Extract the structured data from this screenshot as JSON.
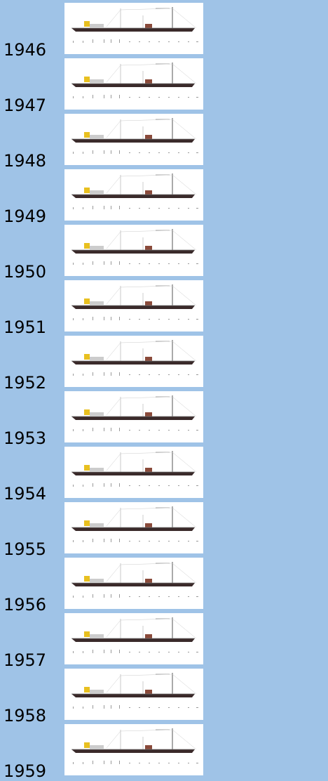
{
  "years": [
    "1946",
    "1947",
    "1948",
    "1949",
    "1950",
    "1951",
    "1952",
    "1953",
    "1954",
    "1955",
    "1956",
    "1957",
    "1958",
    "1959"
  ]
}
